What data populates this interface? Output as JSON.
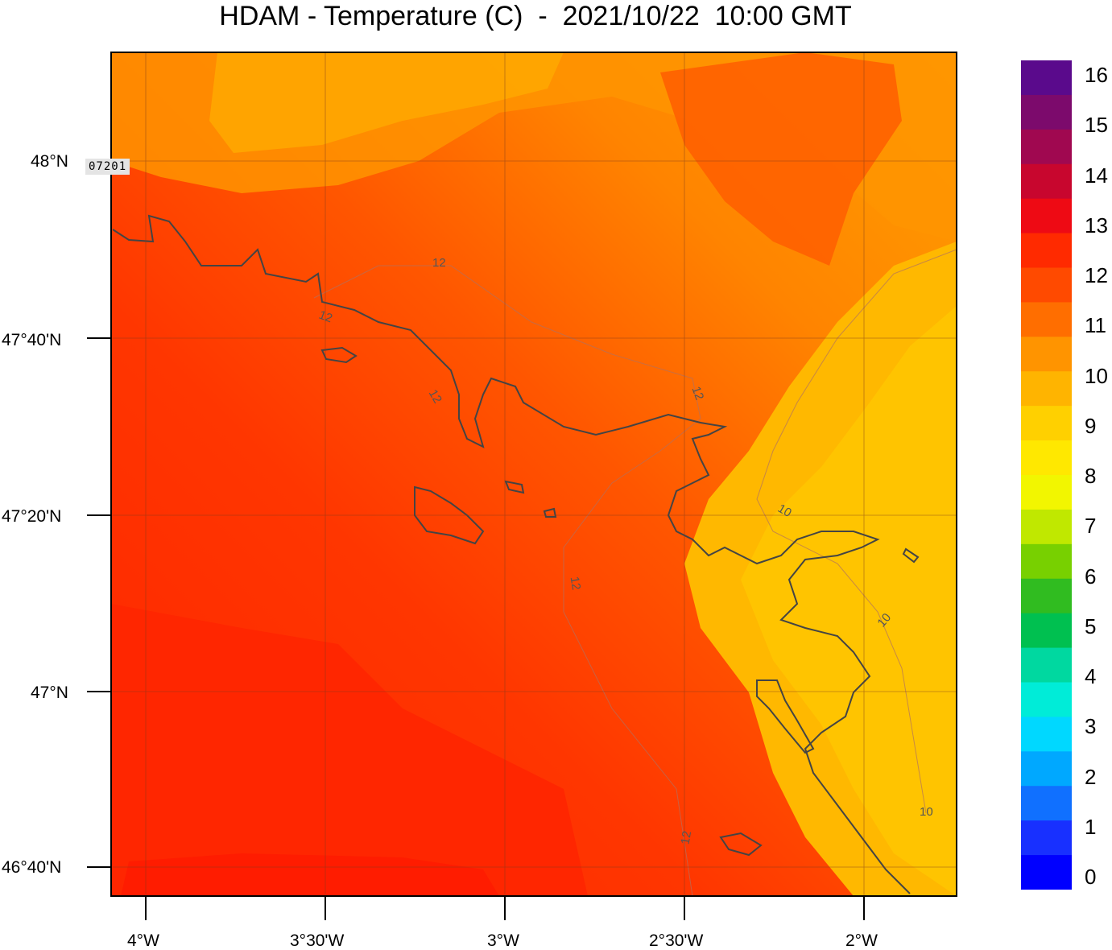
{
  "title": "HDAM - Temperature (C)  -  2021/10/22  10:00 GMT",
  "station_label": "07201",
  "colorbar": {
    "labels": [
      "16",
      "15",
      "14",
      "13",
      "12",
      "11",
      "10",
      "9",
      "8",
      "7",
      "6",
      "5",
      "4",
      "3",
      "2",
      "1",
      "0"
    ],
    "colors": [
      "#5a0a8c",
      "#7c0a6c",
      "#a00850",
      "#c8062e",
      "#ee0a14",
      "#ff2a00",
      "#ff4a00",
      "#ff6e00",
      "#ff9400",
      "#ffb400",
      "#ffd000",
      "#ffe800",
      "#f2f600",
      "#c0e800",
      "#78d000",
      "#30bc20",
      "#00c050",
      "#00d8a0",
      "#00ecd8",
      "#00d8ff",
      "#00a8ff",
      "#1070ff",
      "#1830ff",
      "#0000ff"
    ]
  },
  "y_axis": [
    "48°N",
    "47°40'N",
    "47°20'N",
    "47°N",
    "46°40'N"
  ],
  "x_axis": [
    "4°W",
    "3°30'W",
    "3°W",
    "2°30'W",
    "2°W"
  ],
  "contour_labels": [
    "12",
    "12",
    "12",
    "12",
    "12",
    "12",
    "10",
    "10",
    "10"
  ],
  "colors": {
    "warmest": "#ff2200",
    "warm": "#ff4a00",
    "mid": "#ff6e00",
    "cool": "#ff9c00",
    "coolest": "#ffc000",
    "coast": "#444444"
  }
}
